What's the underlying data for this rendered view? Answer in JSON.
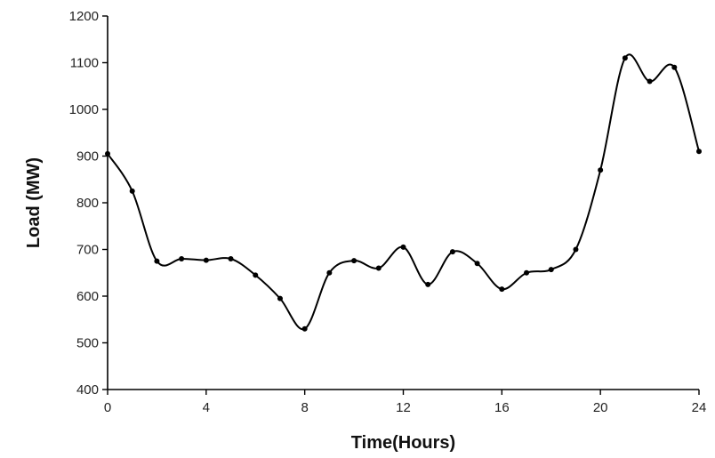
{
  "chart_data": {
    "type": "line",
    "title": "",
    "xlabel": "Time(Hours)",
    "ylabel": "Load (MW)",
    "xlim": [
      0,
      24
    ],
    "ylim": [
      400,
      1200
    ],
    "xticks": [
      0,
      4,
      8,
      12,
      16,
      20,
      24
    ],
    "yticks": [
      400,
      500,
      600,
      700,
      800,
      900,
      1000,
      1100,
      1200
    ],
    "grid": false,
    "legend": "none",
    "series": [
      {
        "color": "#000000",
        "x": [
          0,
          1,
          2,
          3,
          4,
          5,
          6,
          7,
          8,
          9,
          10,
          11,
          12,
          13,
          14,
          15,
          16,
          17,
          18,
          19,
          20,
          21,
          22,
          23,
          24
        ],
        "y": [
          905,
          825,
          675,
          680,
          677,
          680,
          645,
          595,
          530,
          650,
          676,
          660,
          705,
          625,
          695,
          670,
          615,
          650,
          657,
          700,
          870,
          1110,
          1060,
          1090,
          910
        ]
      }
    ]
  }
}
